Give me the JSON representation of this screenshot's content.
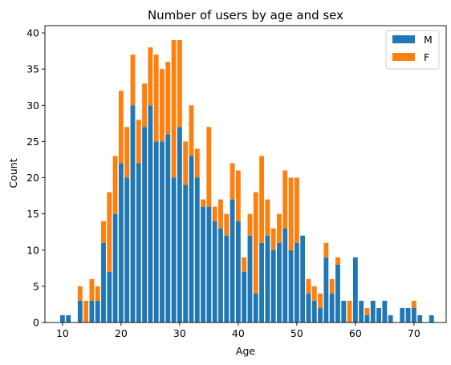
{
  "chart_data": {
    "type": "bar",
    "stacked": true,
    "title": "Number of users by age and sex",
    "xlabel": "Age",
    "ylabel": "Count",
    "xlim": [
      7,
      75.5
    ],
    "ylim": [
      0,
      41
    ],
    "xticks": [
      10,
      20,
      30,
      40,
      50,
      60,
      70
    ],
    "yticks": [
      0,
      5,
      10,
      15,
      20,
      25,
      30,
      35,
      40
    ],
    "grid": false,
    "legend_position": "top-right",
    "x": [
      10,
      11,
      12,
      13,
      14,
      15,
      16,
      17,
      18,
      19,
      20,
      21,
      22,
      23,
      24,
      25,
      26,
      27,
      28,
      29,
      30,
      31,
      32,
      33,
      34,
      35,
      36,
      37,
      38,
      39,
      40,
      41,
      42,
      43,
      44,
      45,
      46,
      47,
      48,
      49,
      50,
      51,
      52,
      53,
      54,
      55,
      56,
      57,
      58,
      59,
      60,
      61,
      62,
      63,
      64,
      65,
      66,
      67,
      68,
      69,
      70,
      71,
      72,
      73
    ],
    "series": [
      {
        "name": "M",
        "color": "#1f77b4",
        "values": [
          1,
          1,
          0,
          3,
          0,
          3,
          3,
          11,
          7,
          15,
          22,
          20,
          30,
          22,
          27,
          30,
          25,
          25,
          26,
          20,
          27,
          19,
          23,
          20,
          16,
          16,
          14,
          13,
          12,
          17,
          14,
          7,
          12,
          4,
          11,
          12,
          10,
          11,
          13,
          10,
          11,
          12,
          4,
          3,
          2,
          9,
          4,
          8,
          3,
          0,
          9,
          3,
          1,
          3,
          2,
          3,
          1,
          0,
          2,
          2,
          2,
          1,
          0,
          1
        ]
      },
      {
        "name": "F",
        "color": "#ff7f0e",
        "values": [
          0,
          0,
          0,
          2,
          3,
          3,
          2,
          3,
          11,
          8,
          10,
          7,
          7,
          6,
          6,
          8,
          12,
          10,
          10,
          19,
          12,
          6,
          7,
          4,
          1,
          11,
          2,
          4,
          3,
          5,
          7,
          2,
          3,
          14,
          12,
          5,
          3,
          4,
          8,
          10,
          9,
          0,
          2,
          2,
          2,
          2,
          2,
          1,
          0,
          3,
          0,
          0,
          1,
          0,
          0,
          0,
          0,
          0,
          0,
          0,
          1,
          0,
          0,
          0
        ]
      }
    ]
  }
}
